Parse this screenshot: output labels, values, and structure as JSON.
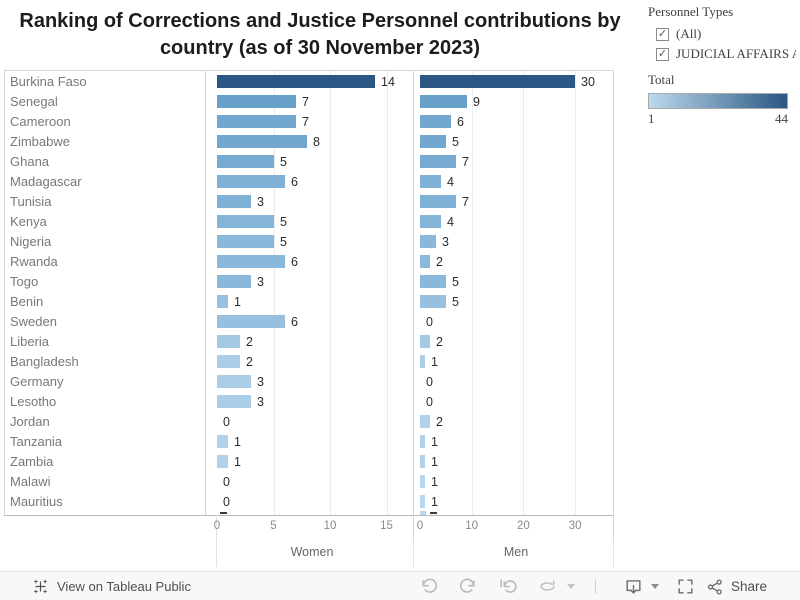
{
  "title": {
    "line1": "Ranking of Corrections and Justice Personnel contributions by",
    "line2": "country (as of  30 November 2023)"
  },
  "filter_panel": {
    "title": "Personnel Types",
    "check_glyph": "✓",
    "options": [
      {
        "label": "(All)",
        "checked": true
      },
      {
        "label": "JUDICIAL AFFAIRS A…",
        "checked": true
      }
    ]
  },
  "color_legend": {
    "title": "Total",
    "min_label": "1",
    "max_label": "44",
    "start_color": "#bcd9ed",
    "end_color": "#2a5783"
  },
  "chart_data": {
    "type": "bar",
    "orientation": "horizontal",
    "title": "Ranking of Corrections and Justice Personnel contributions by country (as of 30 November 2023)",
    "categories": [
      "Burkina Faso",
      "Senegal",
      "Cameroon",
      "Zimbabwe",
      "Ghana",
      "Madagascar",
      "Tunisia",
      "Kenya",
      "Nigeria",
      "Rwanda",
      "Togo",
      "Benin",
      "Sweden",
      "Liberia",
      "Bangladesh",
      "Germany",
      "Lesotho",
      "Jordan",
      "Tanzania",
      "Zambia",
      "Malawi",
      "Mauritius"
    ],
    "series": [
      {
        "name": "Women",
        "values": [
          14,
          7,
          7,
          8,
          5,
          6,
          3,
          5,
          5,
          6,
          3,
          1,
          6,
          2,
          2,
          3,
          3,
          0,
          1,
          1,
          0,
          0
        ],
        "ticks": [
          0,
          5,
          10,
          15
        ],
        "xlim": [
          0,
          16.8
        ]
      },
      {
        "name": "Men",
        "values": [
          30,
          9,
          6,
          5,
          7,
          4,
          7,
          4,
          3,
          2,
          5,
          5,
          0,
          2,
          1,
          0,
          0,
          2,
          1,
          1,
          1,
          1
        ],
        "ticks": [
          0,
          10,
          20,
          30
        ],
        "xlim": [
          0,
          37
        ]
      }
    ],
    "totals": [
      44,
      16,
      13,
      13,
      12,
      10,
      10,
      9,
      8,
      8,
      8,
      6,
      6,
      4,
      3,
      3,
      3,
      2,
      2,
      2,
      1,
      1
    ],
    "bar_colors": [
      "#2a5783",
      "#68a0ca",
      "#72a7cf",
      "#72a7cf",
      "#76aad1",
      "#7fb0d5",
      "#7fb0d5",
      "#84b4d8",
      "#8ab8da",
      "#8ab8da",
      "#8ab8da",
      "#97c0e0",
      "#97c0e0",
      "#a4c9e5",
      "#abcee8",
      "#abcee8",
      "#abcee8",
      "#b2d2eb",
      "#b2d2eb",
      "#b2d2eb",
      "#b9d7ee",
      "#b9d7ee"
    ],
    "color_scale": {
      "field": "Total",
      "min": 1,
      "max": 44
    },
    "grid": true,
    "legend_position": "right"
  },
  "toolbar": {
    "view_label": "View on Tableau Public",
    "share_label": "Share"
  }
}
